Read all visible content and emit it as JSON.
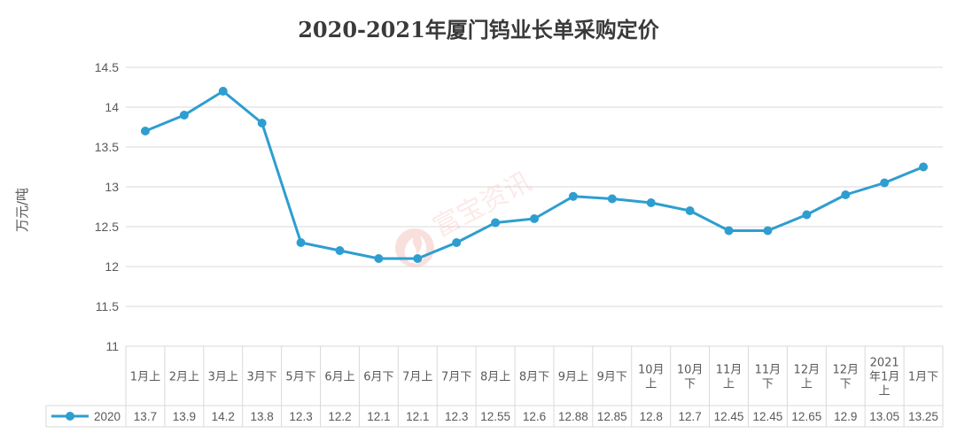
{
  "chart_data": {
    "type": "line",
    "title": "2020-2021年厦门钨业长单采购定价",
    "ylabel": "万元/吨",
    "xlabel": "",
    "ylim": [
      11,
      14.5
    ],
    "yticks": [
      "11",
      "11.5",
      "12",
      "12.5",
      "13",
      "13.5",
      "14",
      "14.5"
    ],
    "grid": true,
    "legend": "bottom-left table",
    "categories": [
      [
        "1月上"
      ],
      [
        "2月上"
      ],
      [
        "3月上"
      ],
      [
        "3月下"
      ],
      [
        "5月下"
      ],
      [
        "6月上"
      ],
      [
        "6月下"
      ],
      [
        "7月上"
      ],
      [
        "7月下"
      ],
      [
        "8月上"
      ],
      [
        "8月下"
      ],
      [
        "9月上"
      ],
      [
        "9月下"
      ],
      [
        "10月",
        "上"
      ],
      [
        "10月",
        "下"
      ],
      [
        "11月",
        "上"
      ],
      [
        "11月",
        "下"
      ],
      [
        "12月",
        "上"
      ],
      [
        "12月",
        "下"
      ],
      [
        "2021",
        "年1月",
        "上"
      ],
      [
        "1月下"
      ]
    ],
    "series": [
      {
        "name": "2020",
        "color": "#2e9ed0",
        "values": [
          13.7,
          13.9,
          14.2,
          13.8,
          12.3,
          12.2,
          12.1,
          12.1,
          12.3,
          12.55,
          12.6,
          12.88,
          12.85,
          12.8,
          12.7,
          12.45,
          12.45,
          12.65,
          12.9,
          13.05,
          13.25
        ]
      }
    ]
  },
  "watermark": {
    "text": "富宝资讯",
    "color": "#e8534a"
  }
}
